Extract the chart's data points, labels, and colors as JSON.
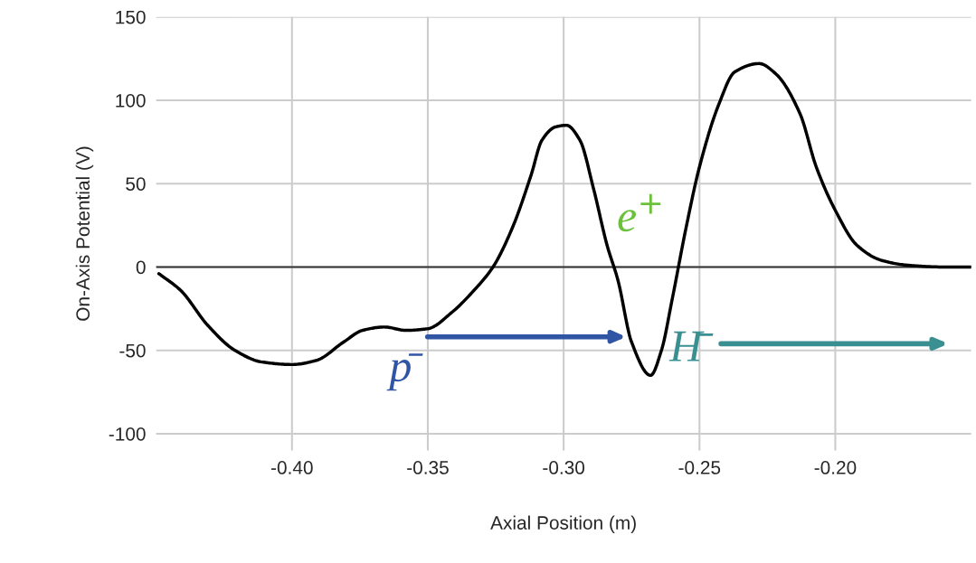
{
  "chart_data": {
    "type": "line",
    "xlabel": "Axial Position (m)",
    "ylabel": "On-Axis Potential (V)",
    "x": [
      -0.449,
      -0.441,
      -0.431,
      -0.421,
      -0.411,
      -0.4,
      -0.391,
      -0.381,
      -0.374,
      -0.366,
      -0.358,
      -0.35,
      -0.341,
      -0.333,
      -0.326,
      -0.319,
      -0.312,
      -0.308,
      -0.303,
      -0.299,
      -0.294,
      -0.289,
      -0.284,
      -0.28,
      -0.275,
      -0.268,
      -0.264,
      -0.26,
      -0.255,
      -0.25,
      -0.243,
      -0.237,
      -0.228,
      -0.222,
      -0.213,
      -0.207,
      -0.2,
      -0.192,
      -0.183,
      -0.173,
      -0.16,
      -0.15
    ],
    "series": [
      {
        "color": "#000000",
        "values": [
          -4,
          -14,
          -35,
          -50,
          -57,
          -58.5,
          -56,
          -45,
          -38,
          -36,
          -38,
          -37,
          -27,
          -14,
          0,
          23,
          55,
          76,
          84,
          85,
          76,
          47,
          13,
          -8,
          -45,
          -65,
          -50,
          -19,
          23,
          60,
          97,
          117,
          122,
          116,
          92,
          60,
          34,
          13,
          4,
          1,
          0,
          0
        ]
      }
    ],
    "xlim": [
      -0.45,
      -0.15
    ],
    "ylim": [
      -110,
      150
    ],
    "xticks": [
      {
        "value": -0.4,
        "label": "-0.40"
      },
      {
        "value": -0.35,
        "label": "-0.35"
      },
      {
        "value": -0.3,
        "label": "-0.30"
      },
      {
        "value": -0.25,
        "label": "-0.25"
      },
      {
        "value": -0.2,
        "label": "-0.20"
      }
    ],
    "yticks": [
      -100,
      -50,
      0,
      50,
      100,
      150
    ],
    "grid": true,
    "legend": false,
    "ref_lines": [
      {
        "axis": "y",
        "value": 0,
        "color": "#333333"
      }
    ],
    "annotations": [
      "p̄",
      "e$^{+}$",
      "H̄"
    ]
  }
}
